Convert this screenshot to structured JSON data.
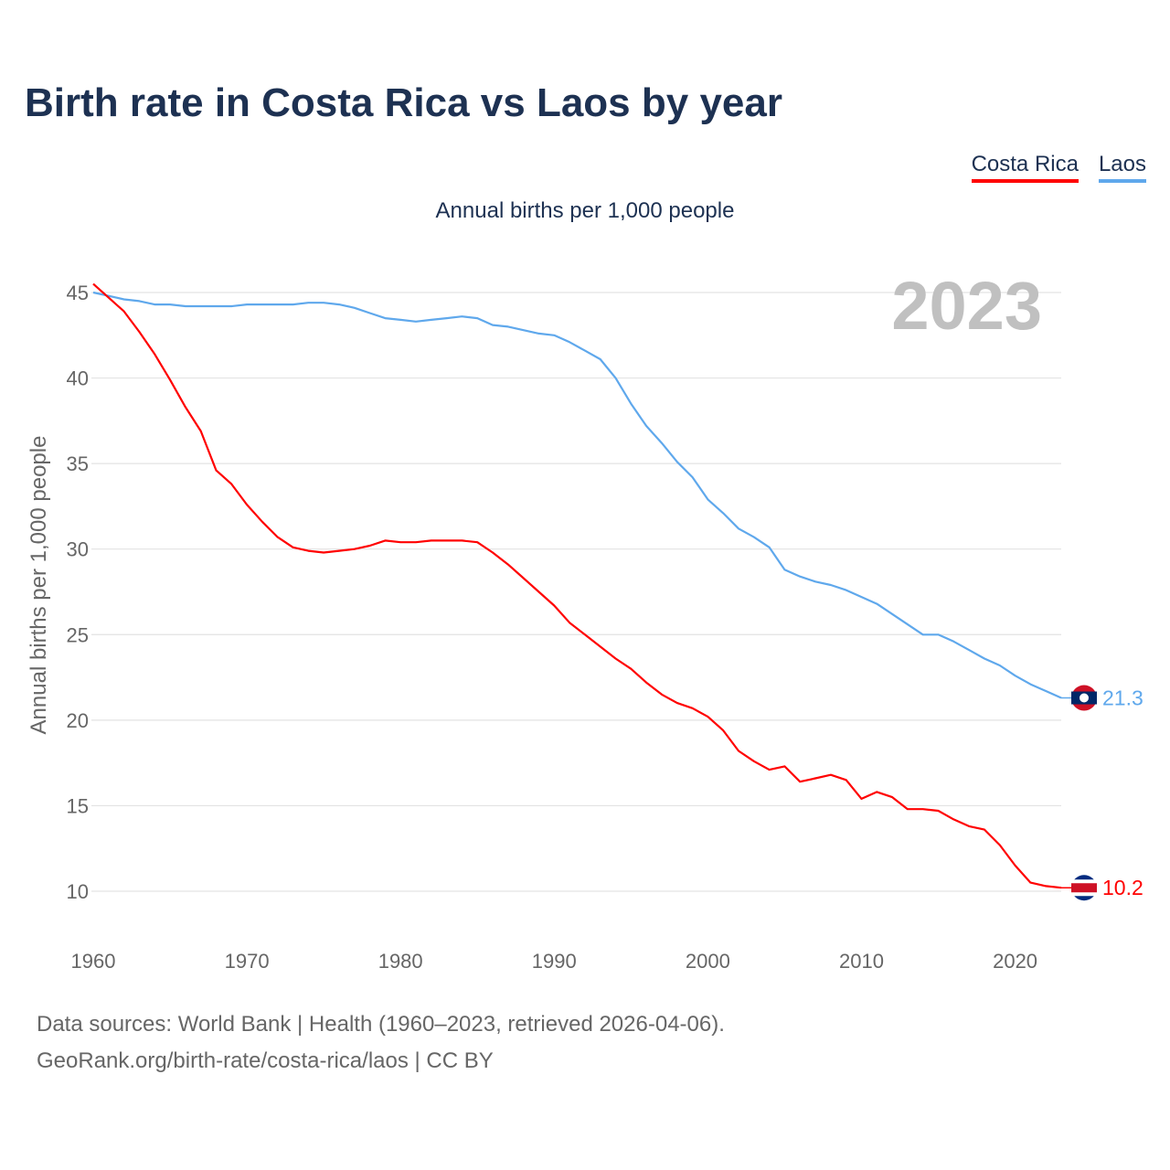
{
  "title": "Birth rate in Costa Rica vs Laos by year",
  "legend": [
    {
      "label": "Costa Rica",
      "color": "#ff0000"
    },
    {
      "label": "Laos",
      "color": "#5fa8ec"
    }
  ],
  "footer": {
    "line1": "Data sources: World Bank | Health (1960–2023, retrieved 2026-04-06).",
    "line2": "GeoRank.org/birth-rate/costa-rica/laos | CC BY"
  },
  "chart_data": {
    "type": "line",
    "title": "Birth rate in Costa Rica vs Laos by year",
    "subtitle": "Annual births per 1,000 people",
    "ylabel": "Annual births per 1,000 people",
    "xlabel": "",
    "year_label": "2023",
    "xlim": [
      1960,
      2023
    ],
    "ylim": [
      8,
      46
    ],
    "x_ticks": [
      1960,
      1970,
      1980,
      1990,
      2000,
      2010,
      2020
    ],
    "y_ticks": [
      10,
      15,
      20,
      25,
      30,
      35,
      40,
      45
    ],
    "grid": true,
    "legend_position": "top-right",
    "x": [
      1960,
      1961,
      1962,
      1963,
      1964,
      1965,
      1966,
      1967,
      1968,
      1969,
      1970,
      1971,
      1972,
      1973,
      1974,
      1975,
      1976,
      1977,
      1978,
      1979,
      1980,
      1981,
      1982,
      1983,
      1984,
      1985,
      1986,
      1987,
      1988,
      1989,
      1990,
      1991,
      1992,
      1993,
      1994,
      1995,
      1996,
      1997,
      1998,
      1999,
      2000,
      2001,
      2002,
      2003,
      2004,
      2005,
      2006,
      2007,
      2008,
      2009,
      2010,
      2011,
      2012,
      2013,
      2014,
      2015,
      2016,
      2017,
      2018,
      2019,
      2020,
      2021,
      2022,
      2023
    ],
    "series": [
      {
        "name": "Costa Rica",
        "color": "#ff0000",
        "end_label": "10.2",
        "values": [
          45.5,
          44.7,
          43.9,
          42.7,
          41.4,
          39.9,
          38.3,
          36.9,
          34.6,
          33.8,
          32.6,
          31.6,
          30.7,
          30.1,
          29.9,
          29.8,
          29.9,
          30.0,
          30.2,
          30.5,
          30.4,
          30.4,
          30.5,
          30.5,
          30.5,
          30.4,
          29.8,
          29.1,
          28.3,
          27.5,
          26.7,
          25.7,
          25.0,
          24.3,
          23.6,
          23.0,
          22.2,
          21.5,
          21.0,
          20.7,
          20.2,
          19.4,
          18.2,
          17.6,
          17.1,
          17.3,
          16.4,
          16.6,
          16.8,
          16.5,
          15.4,
          15.8,
          15.5,
          14.8,
          14.8,
          14.7,
          14.2,
          13.8,
          13.6,
          12.7,
          11.5,
          10.5,
          10.3,
          10.2
        ]
      },
      {
        "name": "Laos",
        "color": "#5fa8ec",
        "end_label": "21.3",
        "values": [
          45.0,
          44.8,
          44.6,
          44.5,
          44.3,
          44.3,
          44.2,
          44.2,
          44.2,
          44.2,
          44.3,
          44.3,
          44.3,
          44.3,
          44.4,
          44.4,
          44.3,
          44.1,
          43.8,
          43.5,
          43.4,
          43.3,
          43.4,
          43.5,
          43.6,
          43.5,
          43.1,
          43.0,
          42.8,
          42.6,
          42.5,
          42.1,
          41.6,
          41.1,
          40.0,
          38.5,
          37.2,
          36.2,
          35.1,
          34.2,
          32.9,
          32.1,
          31.2,
          30.7,
          30.1,
          28.8,
          28.4,
          28.1,
          27.9,
          27.6,
          27.2,
          26.8,
          26.2,
          25.6,
          25.0,
          25.0,
          24.6,
          24.1,
          23.6,
          23.2,
          22.6,
          22.1,
          21.7,
          21.3
        ]
      }
    ]
  }
}
